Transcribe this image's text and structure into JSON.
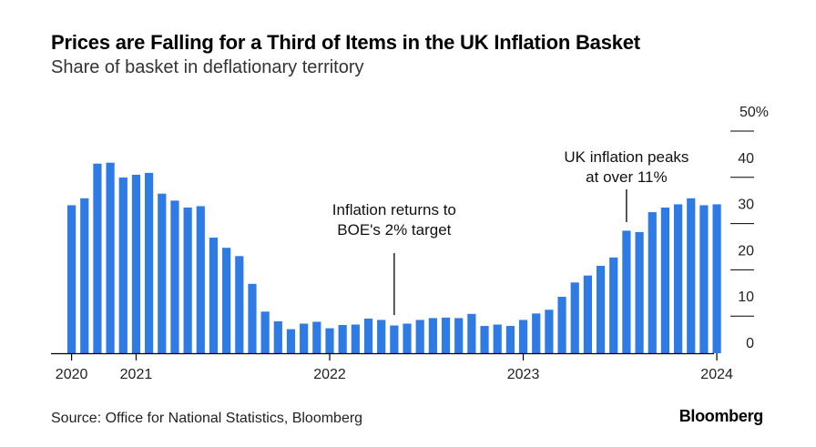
{
  "title": "Prices are Falling for a Third of Items in the UK Inflation Basket",
  "subtitle": "Share of basket in deflationary territory",
  "source": "Source: Office for National Statistics, Bloomberg",
  "brand": "Bloomberg",
  "colors": {
    "bar": "#2f7be6",
    "axis": "#000000",
    "grid": "#000000"
  },
  "chart_data": {
    "type": "bar",
    "title": "Prices are Falling for a Third of Items in the UK Inflation Basket",
    "subtitle": "Share of basket in deflationary territory",
    "ylim": [
      0,
      50
    ],
    "y_ticks": [
      {
        "value": 0,
        "label": "0"
      },
      {
        "value": 10,
        "label": "10"
      },
      {
        "value": 20,
        "label": "20"
      },
      {
        "value": 30,
        "label": "30"
      },
      {
        "value": 40,
        "label": "40"
      },
      {
        "value": 50,
        "label": "50%"
      }
    ],
    "y_axis_position": "right",
    "grid": true,
    "x_ticks": [
      {
        "index": 0,
        "label": "2020"
      },
      {
        "index": 5,
        "label": "2021"
      },
      {
        "index": 20,
        "label": "2022"
      },
      {
        "index": 35,
        "label": "2023"
      },
      {
        "index": 50,
        "label": "2024"
      }
    ],
    "values": [
      32.0,
      33.5,
      41.0,
      41.2,
      38.0,
      38.6,
      39.0,
      34.5,
      33.0,
      31.5,
      31.8,
      25.0,
      22.8,
      21.0,
      15.0,
      9.0,
      6.9,
      5.2,
      6.4,
      6.8,
      5.4,
      6.1,
      6.2,
      7.5,
      7.2,
      6.0,
      6.4,
      7.2,
      7.6,
      7.7,
      7.6,
      8.5,
      5.9,
      6.2,
      5.9,
      7.2,
      8.6,
      9.4,
      12.2,
      15.3,
      16.8,
      18.9,
      20.7,
      26.5,
      26.2,
      30.5,
      31.5,
      32.2,
      33.5,
      32.0,
      32.2
    ],
    "annotations": [
      {
        "text": [
          "Inflation returns to",
          "BOE's 2% target"
        ],
        "index": 25
      },
      {
        "text": [
          "UK inflation peaks",
          "at over 11%"
        ],
        "index": 43
      }
    ]
  }
}
